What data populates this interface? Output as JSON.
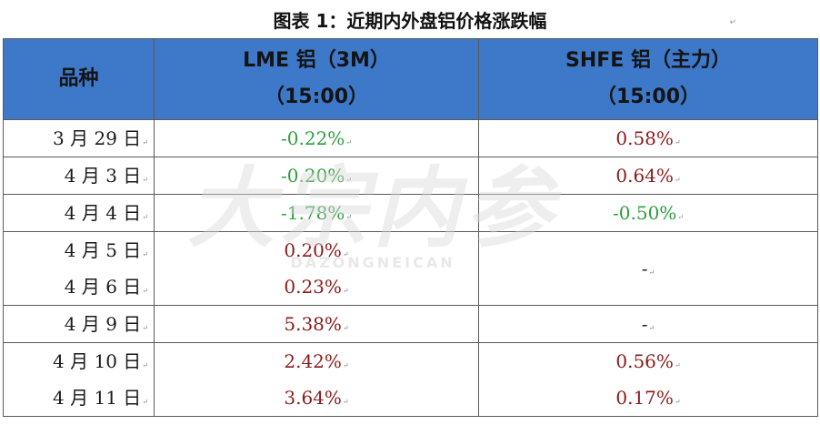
{
  "title": "图表 1：近期内外盘铝价格涨跌幅",
  "title_mark": "↵",
  "para_mark": "↵",
  "watermark": {
    "main": "大宗内参",
    "sub": "DAZONGNEICAN",
    "color": "#d9d9d9"
  },
  "colors": {
    "header_bg": "#3E78C8",
    "positive": "#8B1A1A",
    "negative": "#2E9E40"
  },
  "headers": {
    "variety": "品种",
    "lme_line1": "LME 铝（3M）",
    "lme_line2": "（15:00）",
    "shfe_line1": "SHFE 铝（主力）",
    "shfe_line2": "（15:00）"
  },
  "rows": [
    {
      "dates": [
        "3 月 29 日"
      ],
      "lme": [
        "-0.22%"
      ],
      "shfe": [
        "0.58%"
      ]
    },
    {
      "dates": [
        "4 月 3 日"
      ],
      "lme": [
        "-0.20%"
      ],
      "shfe": [
        "0.64%"
      ]
    },
    {
      "dates": [
        "4 月 4 日"
      ],
      "lme": [
        "-1.78%"
      ],
      "shfe": [
        "-0.50%"
      ]
    },
    {
      "dates": [
        "4 月 5 日",
        "4 月 6 日"
      ],
      "lme": [
        "0.20%",
        "0.23%"
      ],
      "shfe": [
        "-"
      ]
    },
    {
      "dates": [
        "4 月 9 日"
      ],
      "lme": [
        "5.38%"
      ],
      "shfe": [
        "-"
      ]
    },
    {
      "dates": [
        "4 月 10 日",
        "4 月 11 日"
      ],
      "lme": [
        "2.42%",
        "3.64%"
      ],
      "shfe": [
        "0.56%",
        "0.17%"
      ]
    }
  ]
}
